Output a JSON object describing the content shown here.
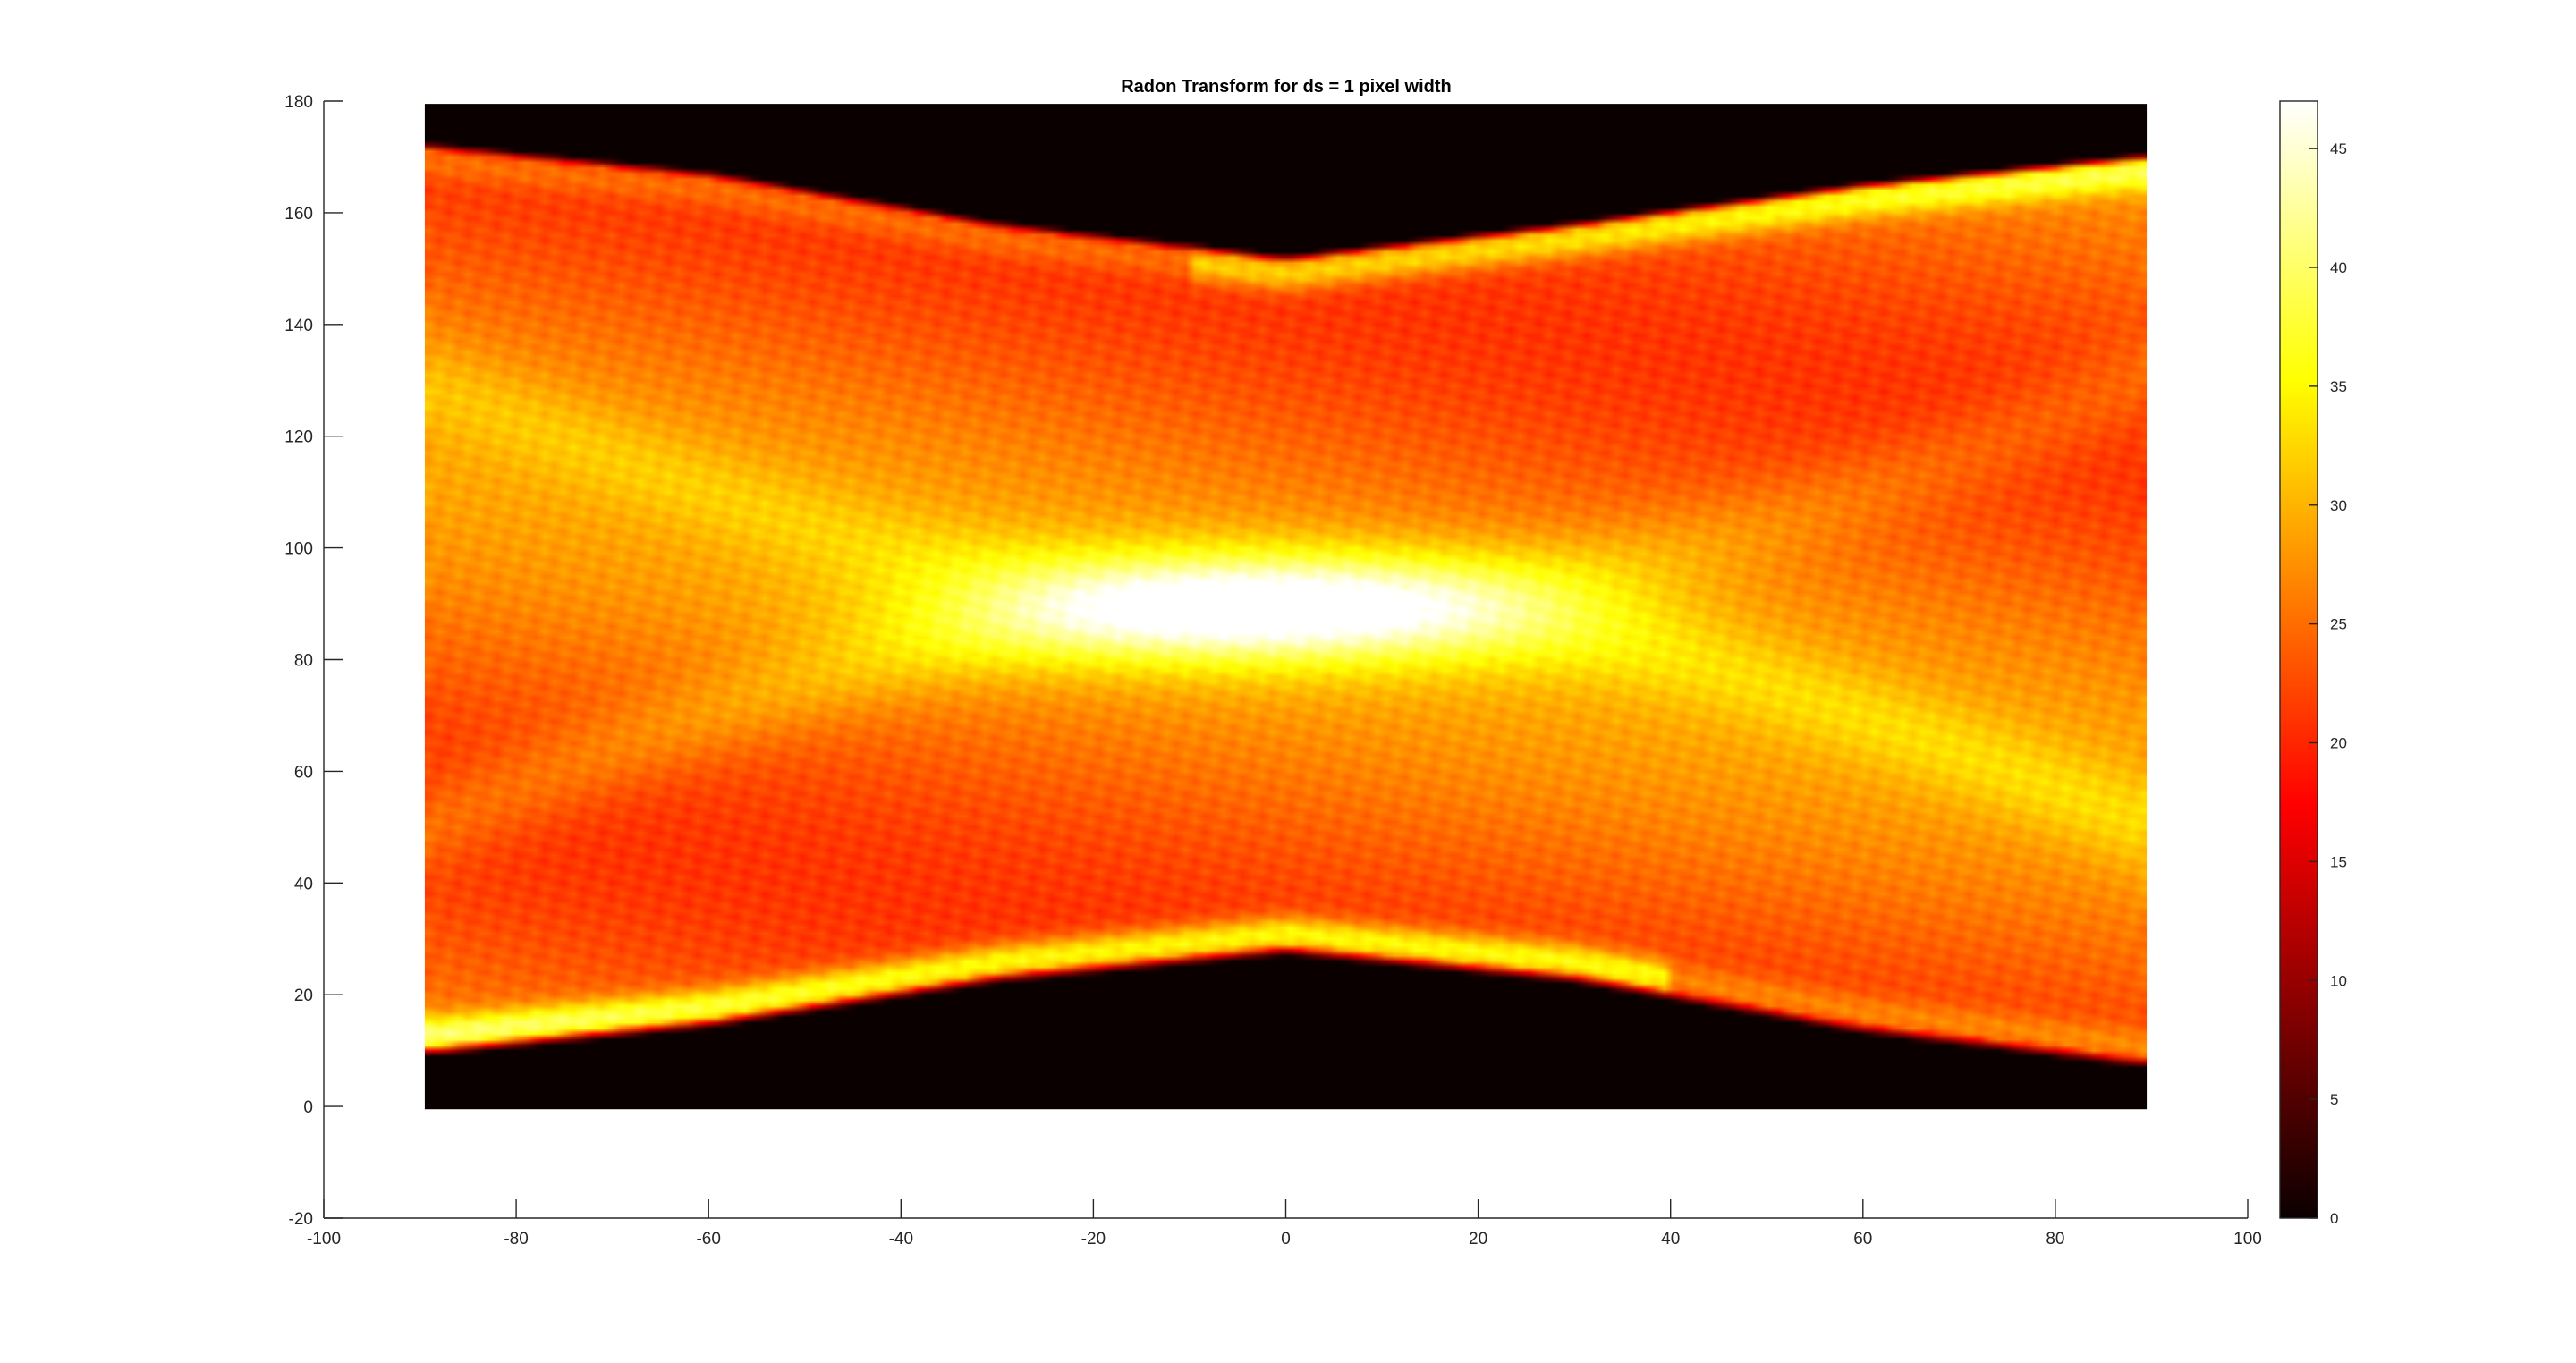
{
  "chart_data": {
    "type": "heatmap",
    "title": "Radon Transform for ds = 1 pixel width",
    "xlabel": "",
    "ylabel": "",
    "xlim": [
      -100,
      100
    ],
    "ylim": [
      -20,
      180
    ],
    "x_ticks": [
      -100,
      -80,
      -60,
      -40,
      -20,
      0,
      20,
      40,
      60,
      80,
      100
    ],
    "y_ticks": [
      -20,
      0,
      20,
      40,
      60,
      80,
      100,
      120,
      140,
      160,
      180
    ],
    "grid": false,
    "image_extent": {
      "x": [
        -89.5,
        89.5
      ],
      "y": [
        -0.5,
        179.5
      ]
    },
    "colormap": "hot",
    "colorbar": {
      "range": [
        0,
        47
      ],
      "ticks": [
        0,
        5,
        10,
        15,
        20,
        25,
        30,
        35,
        40,
        45
      ],
      "position": "right"
    },
    "features": {
      "lower_edge": {
        "description": "lower support boundary (bright ridge)",
        "x": [
          -89,
          -60,
          -30,
          0,
          30,
          60,
          89
        ],
        "y": [
          11,
          16,
          24,
          29,
          24,
          15,
          9
        ]
      },
      "upper_edge": {
        "description": "upper support boundary",
        "x": [
          -89,
          -60,
          -30,
          0,
          30,
          60,
          89
        ],
        "y": [
          171,
          166,
          157,
          151,
          157,
          164,
          169
        ]
      },
      "peak": {
        "x": -3,
        "y": 89,
        "value": 47
      }
    }
  }
}
